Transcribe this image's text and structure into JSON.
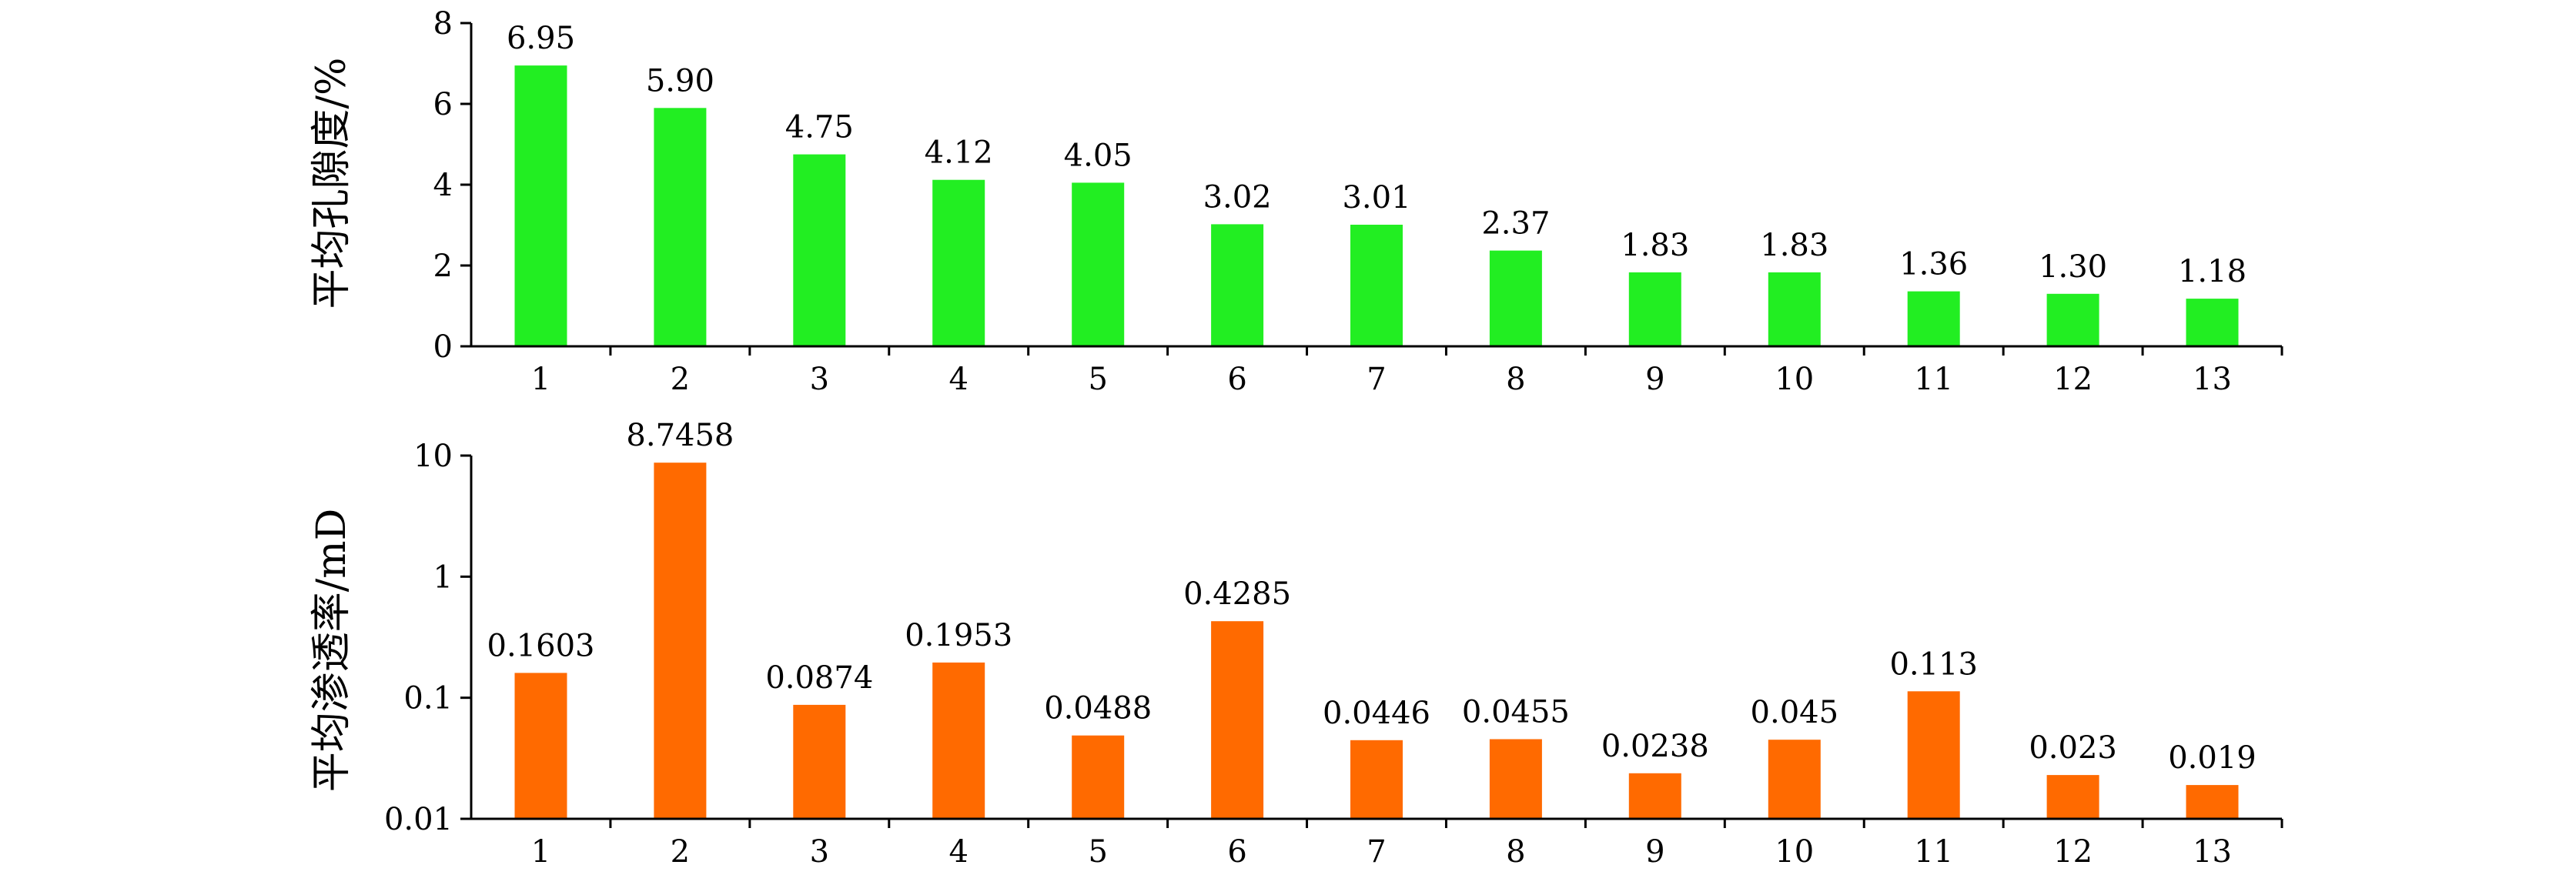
{
  "chart_data": [
    {
      "type": "bar",
      "categories": [
        "1",
        "2",
        "3",
        "4",
        "5",
        "6",
        "7",
        "8",
        "9",
        "10",
        "11",
        "12",
        "13"
      ],
      "values": [
        6.95,
        5.9,
        4.75,
        4.12,
        4.05,
        3.02,
        3.01,
        2.37,
        1.83,
        1.83,
        1.36,
        1.3,
        1.18
      ],
      "data_labels": [
        "6.95",
        "5.90",
        "4.75",
        "4.12",
        "4.05",
        "3.02",
        "3.01",
        "2.37",
        "1.83",
        "1.83",
        "1.36",
        "1.30",
        "1.18"
      ],
      "ylabel": "平均孔隙度/%",
      "ylim": [
        0,
        8
      ],
      "yscale": "linear",
      "yticks": [
        "0",
        "2",
        "4",
        "6",
        "8"
      ],
      "color": "#22ee22",
      "grid": false
    },
    {
      "type": "bar",
      "categories": [
        "1",
        "2",
        "3",
        "4",
        "5",
        "6",
        "7",
        "8",
        "9",
        "10",
        "11",
        "12",
        "13"
      ],
      "values": [
        0.1603,
        8.7458,
        0.0874,
        0.1953,
        0.0488,
        0.4285,
        0.0446,
        0.0455,
        0.0238,
        0.045,
        0.113,
        0.023,
        0.019
      ],
      "data_labels": [
        "0.1603",
        "8.7458",
        "0.0874",
        "0.1953",
        "0.0488",
        "0.4285",
        "0.0446",
        "0.0455",
        "0.0238",
        "0.045",
        "0.113",
        "0.023",
        "0.019"
      ],
      "ylabel": "平均渗透率/mD",
      "ylim": [
        0.01,
        10
      ],
      "yscale": "log",
      "yticks": [
        "0.01",
        "0.1",
        "1",
        "10"
      ],
      "color": "#ff6a00",
      "grid": false
    }
  ]
}
